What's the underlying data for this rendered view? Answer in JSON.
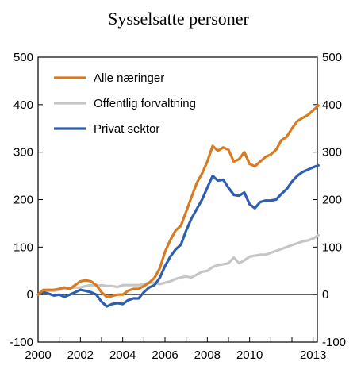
{
  "chart_data": {
    "type": "line",
    "title": "Sysselsatte personer",
    "xlabel": "",
    "ylabel": "",
    "xlim": [
      2000,
      2013.2
    ],
    "ylim": [
      -100,
      500
    ],
    "x_ticks": [
      2000,
      2002,
      2004,
      2006,
      2008,
      2010,
      2013
    ],
    "x_tick_labels": [
      "2000",
      "2002",
      "2004",
      "2006",
      "2008",
      "2010",
      "2013"
    ],
    "y_ticks": [
      -100,
      0,
      100,
      200,
      300,
      400,
      500
    ],
    "y_tick_labels": [
      "-100",
      "0",
      "100",
      "200",
      "300",
      "400",
      "500"
    ],
    "grid": false,
    "legend_position": "top-left",
    "series": [
      {
        "name": "Alle næringer",
        "color": "#d97a1e",
        "x": [
          2000.0,
          2000.25,
          2000.5,
          2000.75,
          2001.0,
          2001.25,
          2001.5,
          2001.75,
          2002.0,
          2002.25,
          2002.5,
          2002.75,
          2003.0,
          2003.25,
          2003.5,
          2003.75,
          2004.0,
          2004.25,
          2004.5,
          2004.75,
          2005.0,
          2005.25,
          2005.5,
          2005.75,
          2006.0,
          2006.25,
          2006.5,
          2006.75,
          2007.0,
          2007.25,
          2007.5,
          2007.75,
          2008.0,
          2008.25,
          2008.5,
          2008.75,
          2009.0,
          2009.25,
          2009.5,
          2009.75,
          2010.0,
          2010.25,
          2010.5,
          2010.75,
          2011.0,
          2011.25,
          2011.5,
          2011.75,
          2012.0,
          2012.25,
          2012.5,
          2012.75,
          2013.0,
          2013.25
        ],
        "values": [
          0,
          10,
          10,
          10,
          12,
          15,
          12,
          20,
          28,
          30,
          28,
          20,
          5,
          -5,
          -3,
          0,
          0,
          8,
          12,
          12,
          18,
          25,
          35,
          55,
          90,
          115,
          135,
          145,
          175,
          205,
          235,
          255,
          280,
          313,
          303,
          310,
          305,
          280,
          285,
          300,
          275,
          270,
          280,
          290,
          295,
          305,
          325,
          332,
          350,
          365,
          372,
          378,
          388,
          398
        ]
      },
      {
        "name": "Offentlig forvaltning",
        "color": "#c6c6c6",
        "x": [
          2000.0,
          2000.25,
          2000.5,
          2000.75,
          2001.0,
          2001.25,
          2001.5,
          2001.75,
          2002.0,
          2002.25,
          2002.5,
          2002.75,
          2003.0,
          2003.25,
          2003.5,
          2003.75,
          2004.0,
          2004.25,
          2004.5,
          2004.75,
          2005.0,
          2005.25,
          2005.5,
          2005.75,
          2006.0,
          2006.25,
          2006.5,
          2006.75,
          2007.0,
          2007.25,
          2007.5,
          2007.75,
          2008.0,
          2008.25,
          2008.5,
          2008.75,
          2009.0,
          2009.25,
          2009.5,
          2009.75,
          2010.0,
          2010.25,
          2010.5,
          2010.75,
          2011.0,
          2011.25,
          2011.5,
          2011.75,
          2012.0,
          2012.25,
          2012.5,
          2012.75,
          2013.0,
          2013.25
        ],
        "values": [
          0,
          5,
          8,
          8,
          10,
          12,
          14,
          15,
          15,
          18,
          20,
          18,
          20,
          18,
          18,
          16,
          20,
          20,
          20,
          20,
          22,
          25,
          25,
          22,
          25,
          28,
          33,
          36,
          38,
          36,
          42,
          48,
          50,
          58,
          62,
          64,
          66,
          78,
          66,
          72,
          80,
          82,
          84,
          84,
          88,
          92,
          96,
          100,
          104,
          108,
          112,
          114,
          118,
          125
        ]
      },
      {
        "name": "Privat sektor",
        "color": "#2d5eb0",
        "x": [
          2000.0,
          2000.25,
          2000.5,
          2000.75,
          2001.0,
          2001.25,
          2001.5,
          2001.75,
          2002.0,
          2002.25,
          2002.5,
          2002.75,
          2003.0,
          2003.25,
          2003.5,
          2003.75,
          2004.0,
          2004.25,
          2004.5,
          2004.75,
          2005.0,
          2005.25,
          2005.5,
          2005.75,
          2006.0,
          2006.25,
          2006.5,
          2006.75,
          2007.0,
          2007.25,
          2007.5,
          2007.75,
          2008.0,
          2008.25,
          2008.5,
          2008.75,
          2009.0,
          2009.25,
          2009.5,
          2009.75,
          2010.0,
          2010.25,
          2010.5,
          2010.75,
          2011.0,
          2011.25,
          2011.5,
          2011.75,
          2012.0,
          2012.25,
          2012.5,
          2012.75,
          2013.0,
          2013.25
        ],
        "values": [
          0,
          5,
          2,
          -2,
          0,
          -5,
          0,
          5,
          10,
          8,
          5,
          0,
          -15,
          -25,
          -20,
          -18,
          -20,
          -12,
          -8,
          -8,
          5,
          15,
          20,
          35,
          60,
          80,
          95,
          105,
          135,
          160,
          180,
          200,
          225,
          250,
          240,
          242,
          225,
          210,
          208,
          215,
          190,
          182,
          195,
          198,
          198,
          200,
          212,
          222,
          238,
          250,
          258,
          263,
          268,
          272
        ]
      }
    ]
  }
}
